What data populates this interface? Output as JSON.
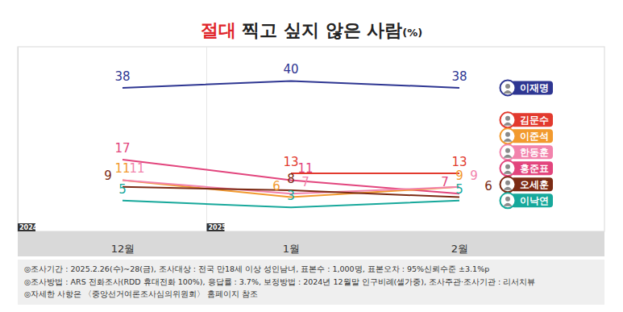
{
  "chart_data": {
    "type": "line",
    "title": "절대 찍고 싶지 않은 사람(%)",
    "categories": [
      "12월",
      "1월",
      "2월"
    ],
    "series": [
      {
        "name": "이재명",
        "color": "#2e3692",
        "values": [
          38,
          40,
          38
        ]
      },
      {
        "name": "홍준표",
        "color": "#e2457d",
        "values": [
          17,
          11,
          7
        ]
      },
      {
        "name": "김문수",
        "color": "#e23a2e",
        "values": [
          null,
          13,
          13
        ]
      },
      {
        "name": "이준석",
        "color": "#f29a2e",
        "values": [
          11,
          6,
          9
        ]
      },
      {
        "name": "한동훈",
        "color": "#f283ac",
        "values": [
          11,
          7,
          9
        ]
      },
      {
        "name": "오세훈",
        "color": "#7b2b14",
        "values": [
          9,
          8,
          6
        ]
      },
      {
        "name": "이낙연",
        "color": "#17a89b",
        "values": [
          5,
          3,
          5
        ]
      }
    ],
    "ylim": [
      -4,
      50
    ],
    "yticks": [],
    "tick_labels": "x",
    "grid": false,
    "data_labels": true,
    "marker": "none",
    "line_style": "solid",
    "annotations": [
      "2024",
      "2025"
    ],
    "footnotes": [
      "◎조사기간 : 2025.2.26(수)~28(금), 조사대상 : 전국 만18세 이상 성인남녀, 표본수 : 1,000명, 표본오차 : 95%신뢰수준 ±3.1%p",
      "◎조사방법 : ARS 전화조사(RDD 휴대전화 100%), 응답률 : 3.7%, 보정방법 : 2024년 12월말 인구비례(셀가중), 조사주관·조사기관 : 리서치뷰",
      "◎자세한 사항은 〈중앙선거여론조사심의위원회〉 홈페이지 참조"
    ]
  }
}
